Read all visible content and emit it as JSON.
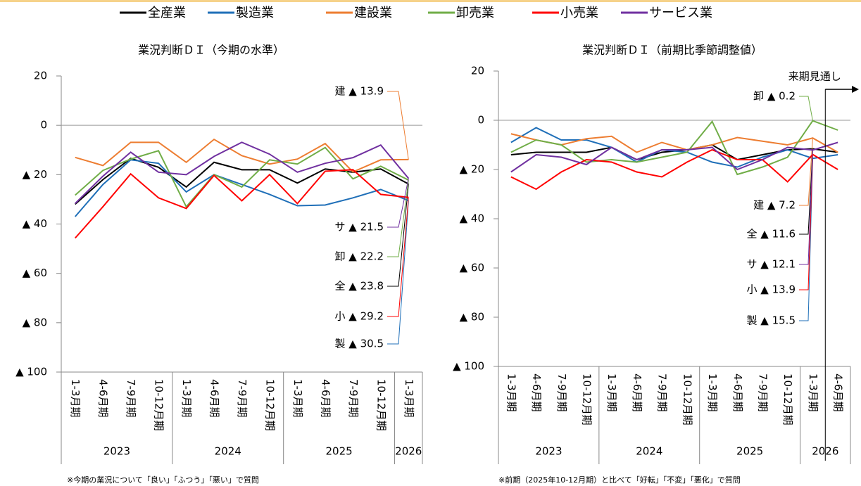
{
  "chart_data": [
    {
      "type": "line",
      "title": "業況判断ＤＩ（今期の水準）",
      "categories": [
        "1-3月期",
        "4-6月期",
        "7-9月期",
        "10-12月期",
        "1-3月期",
        "4-6月期",
        "7-9月期",
        "10-12月期",
        "1-3月期",
        "4-6月期",
        "7-9月期",
        "10-12月期",
        "1-3月期"
      ],
      "category_groups": [
        "2023",
        null,
        null,
        null,
        "2024",
        null,
        null,
        null,
        "2025",
        null,
        null,
        null,
        "2026"
      ],
      "ylim": [
        -100,
        20
      ],
      "yticks": [
        20,
        0,
        {
          "value": -20,
          "label": "▲ 20"
        },
        {
          "value": -40,
          "label": "▲ 40"
        },
        {
          "value": -60,
          "label": "▲ 60"
        },
        {
          "value": -80,
          "label": "▲ 80"
        },
        {
          "value": -100,
          "label": "▲ 100"
        }
      ],
      "series": [
        {
          "name": "全産業",
          "color": "#000000",
          "values": [
            -32,
            -22,
            -13.4,
            -17,
            -25,
            -15,
            -18,
            -18,
            -23.4,
            -17.7,
            -19,
            -17.7,
            -23.8
          ],
          "value_labels": [
            null,
            null,
            null,
            null,
            null,
            null,
            null,
            null,
            null,
            null,
            null,
            null,
            "全 ▲ 23.8"
          ]
        },
        {
          "name": "製造業",
          "color": "#1f6fb8",
          "values": [
            -37,
            -24,
            -14,
            -15.4,
            -27,
            -20,
            -24,
            -28,
            -32.6,
            -32.3,
            -29.4,
            -26,
            -30.5
          ],
          "value_labels": [
            null,
            null,
            null,
            null,
            null,
            null,
            null,
            null,
            null,
            null,
            null,
            null,
            "製 ▲ 30.5"
          ]
        },
        {
          "name": "建設業",
          "color": "#ed7d31",
          "values": [
            -13,
            -16.3,
            -6.9,
            -6.9,
            -15,
            -5.7,
            -12.3,
            -15.7,
            -13.7,
            -7.4,
            -18.9,
            -14,
            -13.9
          ],
          "value_labels": [
            null,
            null,
            null,
            null,
            null,
            null,
            null,
            null,
            null,
            null,
            null,
            null,
            "建 ▲ 13.9"
          ]
        },
        {
          "name": "卸売業",
          "color": "#70ad47",
          "values": [
            -28.3,
            -18.3,
            -13.7,
            -10.3,
            -33,
            -20,
            -25,
            -14,
            -15.7,
            -9,
            -21.7,
            -16.6,
            -22.2
          ],
          "value_labels": [
            null,
            null,
            null,
            null,
            null,
            null,
            null,
            null,
            null,
            null,
            null,
            null,
            "卸 ▲ 22.2"
          ]
        },
        {
          "name": "小売業",
          "color": "#ff0000",
          "values": [
            -45.7,
            -33,
            -19.7,
            -29.4,
            -33.7,
            -20.3,
            -30.6,
            -20,
            -31.7,
            -18.6,
            -18,
            -28,
            -29.2
          ],
          "value_labels": [
            null,
            null,
            null,
            null,
            null,
            null,
            null,
            null,
            null,
            null,
            null,
            null,
            "小 ▲ 29.2"
          ]
        },
        {
          "name": "サービス業",
          "color": "#7030a0",
          "values": [
            -31.7,
            -20.6,
            -10.9,
            -19,
            -20,
            -12.6,
            -6.9,
            -11.7,
            -19,
            -15.4,
            -13.1,
            -8,
            -21.5
          ],
          "value_labels": [
            null,
            null,
            null,
            null,
            null,
            null,
            null,
            null,
            null,
            null,
            null,
            null,
            "サ ▲ 21.5"
          ]
        }
      ],
      "footnote": "※今期の業況について「良い」「ふつう」「悪い」で質問"
    },
    {
      "type": "line",
      "title": "業況判断ＤＩ（前期比季節調整値）",
      "categories": [
        "1-3月期",
        "4-6月期",
        "7-9月期",
        "10-12月期",
        "1-3月期",
        "4-6月期",
        "7-9月期",
        "10-12月期",
        "1-3月期",
        "4-6月期",
        "7-9月期",
        "10-12月期",
        "1-3月期",
        "4-6月期"
      ],
      "category_groups": [
        "2023",
        null,
        null,
        null,
        "2024",
        null,
        null,
        null,
        "2025",
        null,
        null,
        null,
        "2026",
        null
      ],
      "ylim": [
        -100,
        20
      ],
      "yticks": [
        20,
        0,
        {
          "value": -20,
          "label": "▲ 20"
        },
        {
          "value": -40,
          "label": "▲ 40"
        },
        {
          "value": -60,
          "label": "▲ 60"
        },
        {
          "value": -80,
          "label": "▲ 80"
        },
        {
          "value": -100,
          "label": "▲ 100"
        }
      ],
      "annotation": "来期見通し",
      "series": [
        {
          "name": "全産業",
          "color": "#000000",
          "values": [
            -14,
            -13,
            -13,
            -13,
            -11,
            -16,
            -13,
            -12,
            -10,
            -16,
            -14,
            -12,
            -11.6,
            -13
          ],
          "value_labels": [
            null,
            null,
            null,
            null,
            null,
            null,
            null,
            null,
            null,
            null,
            null,
            null,
            "全 ▲ 11.6",
            null
          ]
        },
        {
          "name": "製造業",
          "color": "#1f6fb8",
          "values": [
            -9,
            -3,
            -8,
            -8,
            -11,
            -17,
            -12,
            -13,
            -17,
            -19,
            -15,
            -12,
            -15.5,
            -14
          ],
          "value_labels": [
            null,
            null,
            null,
            null,
            null,
            null,
            null,
            null,
            null,
            null,
            null,
            null,
            "製 ▲ 15.5",
            null
          ]
        },
        {
          "name": "建設業",
          "color": "#ed7d31",
          "values": [
            -5.5,
            -8,
            -10,
            -7.5,
            -6.5,
            -13,
            -9,
            -12,
            -10,
            -7,
            -8.5,
            -10,
            -7.2,
            -13
          ],
          "value_labels": [
            null,
            null,
            null,
            null,
            null,
            null,
            null,
            null,
            null,
            null,
            null,
            null,
            "建 ▲ 7.2",
            null
          ]
        },
        {
          "name": "卸売業",
          "color": "#70ad47",
          "values": [
            -13,
            -8,
            -10,
            -17,
            -16,
            -17,
            -15,
            -13,
            -0.5,
            -22,
            -19,
            -15,
            -0.2,
            -4
          ],
          "value_labels": [
            null,
            null,
            null,
            null,
            null,
            null,
            null,
            null,
            null,
            null,
            null,
            null,
            "卸 ▲ 0.2",
            null
          ]
        },
        {
          "name": "小売業",
          "color": "#ff0000",
          "values": [
            -23,
            -28,
            -21,
            -16,
            -17,
            -21,
            -23,
            -17,
            -12,
            -16,
            -16,
            -25,
            -13.9,
            -20
          ],
          "value_labels": [
            null,
            null,
            null,
            null,
            null,
            null,
            null,
            null,
            null,
            null,
            null,
            null,
            "小 ▲ 13.9",
            null
          ]
        },
        {
          "name": "サービス業",
          "color": "#7030a0",
          "values": [
            -21,
            -14,
            -15,
            -18,
            -11,
            -16,
            -12,
            -12,
            -11,
            -20,
            -16,
            -11,
            -12.1,
            -9
          ],
          "value_labels": [
            null,
            null,
            null,
            null,
            null,
            null,
            null,
            null,
            null,
            null,
            null,
            null,
            "サ ▲ 12.1",
            null
          ]
        }
      ],
      "footnote": "※前期（2025年10-12月期）と比べて「好転」「不変」「悪化」で質問"
    }
  ]
}
